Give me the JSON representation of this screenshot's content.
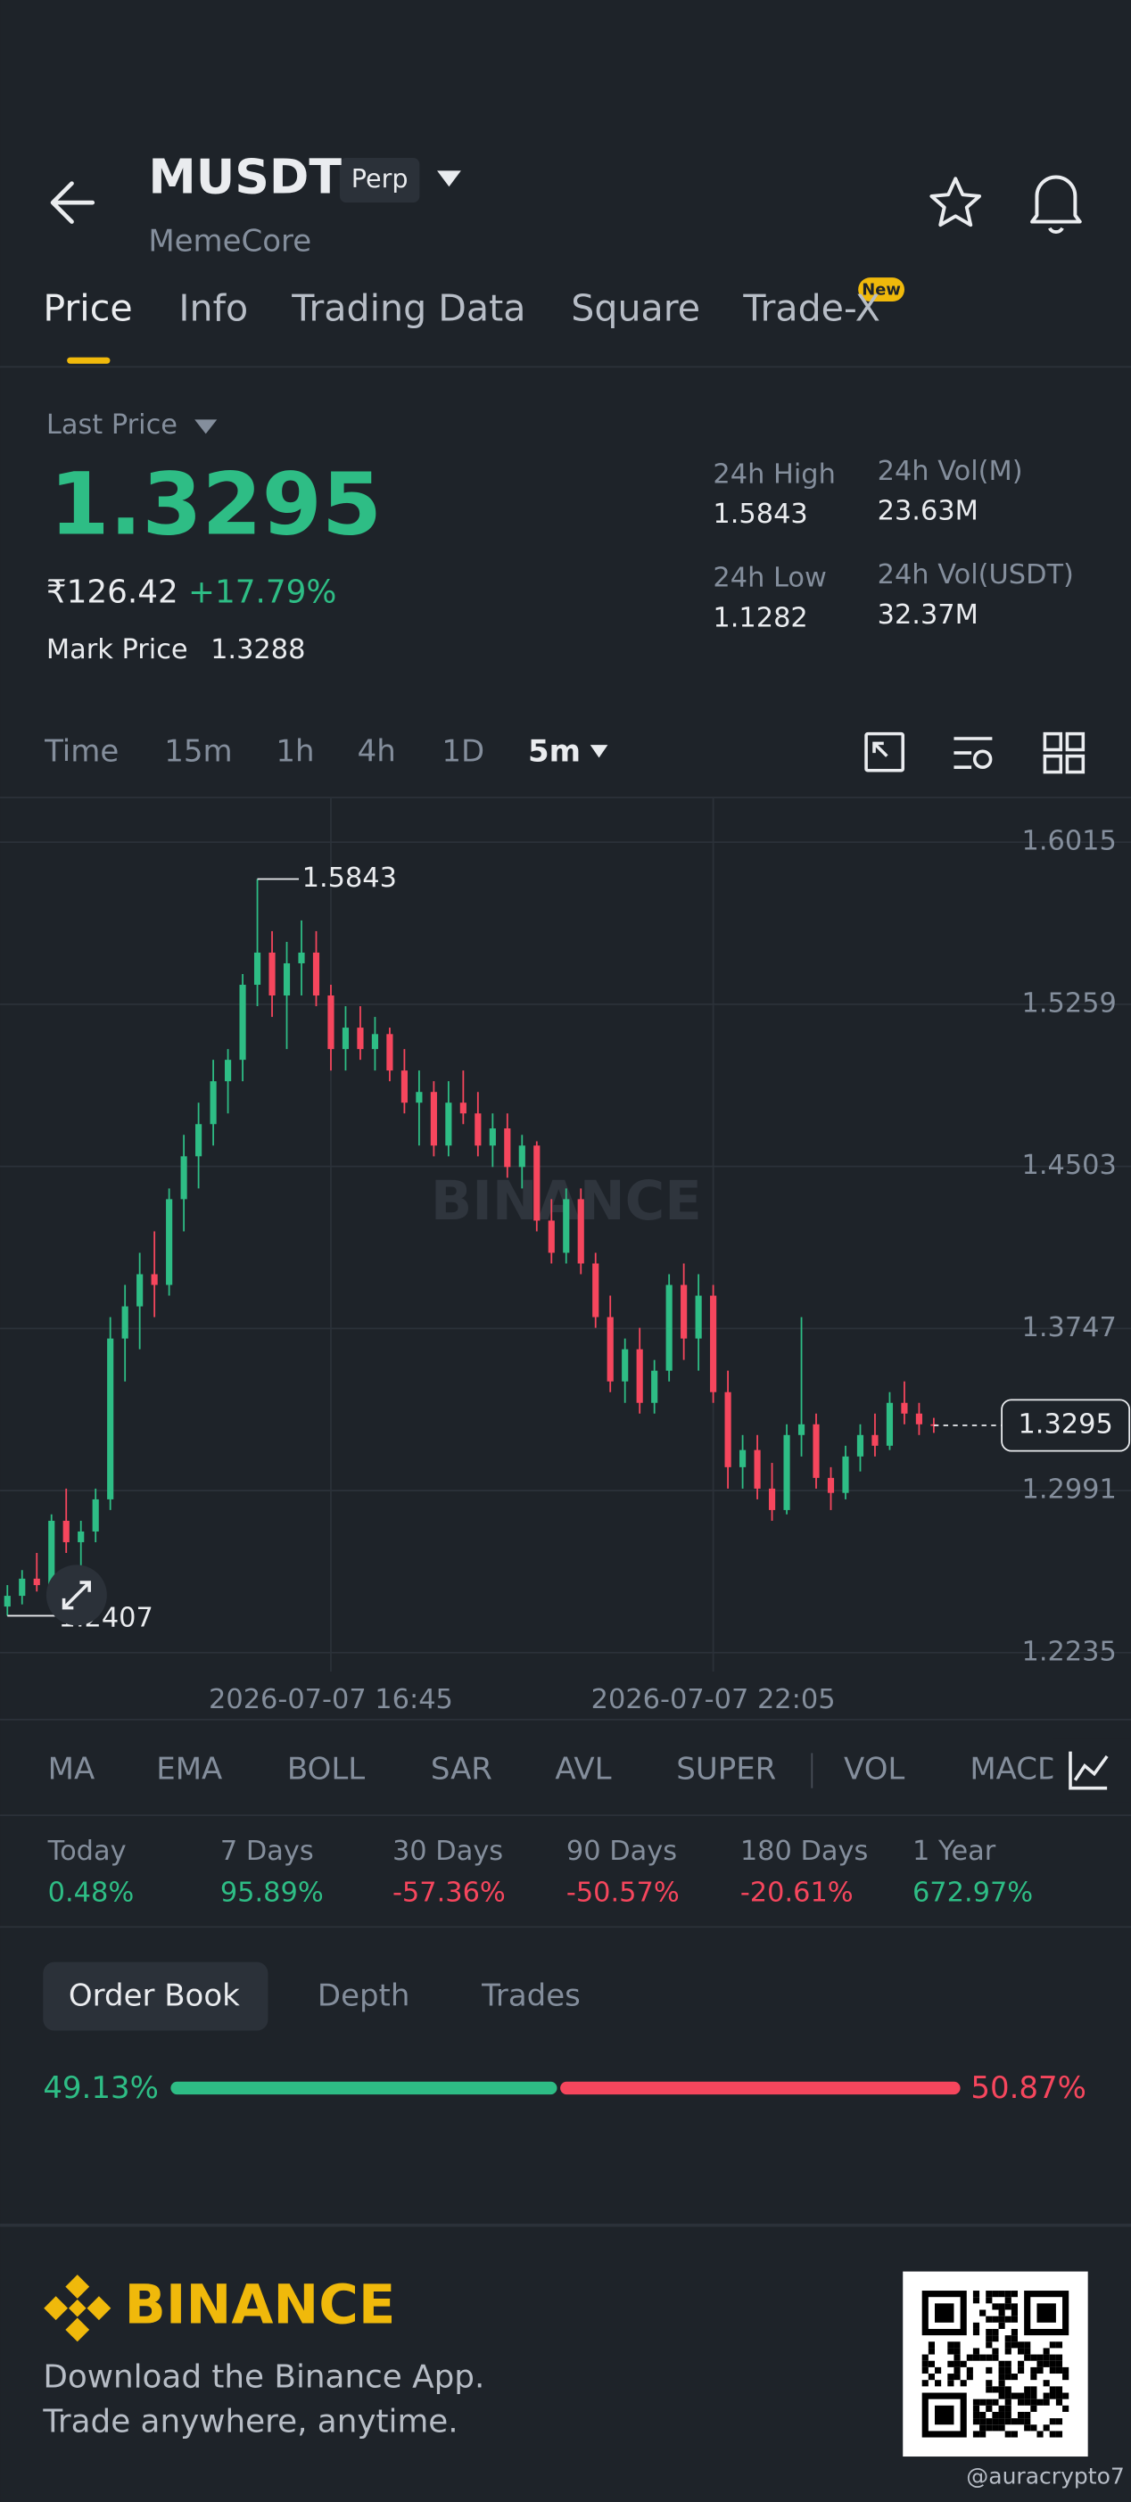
{
  "header": {
    "symbol": "MUSDT",
    "badge": "Perp",
    "name": "MemeCore"
  },
  "tabs": [
    "Price",
    "Info",
    "Trading Data",
    "Square",
    "Trade-X"
  ],
  "tab_badge": "New",
  "ticker": {
    "last_price_label": "Last Price",
    "last_price": "1.3295",
    "fiat_price": "₹126.42",
    "change": "+17.79%",
    "mark_price_label": "Mark Price",
    "mark_price": "1.3288",
    "stats": [
      {
        "label": "24h High",
        "value": "1.5843"
      },
      {
        "label": "24h Vol(M)",
        "value": "23.63M"
      },
      {
        "label": "24h Low",
        "value": "1.1282"
      },
      {
        "label": "24h Vol(USDT)",
        "value": "32.37M"
      }
    ]
  },
  "intervals": [
    "Time",
    "15m",
    "1h",
    "4h",
    "1D",
    "5m"
  ],
  "chart_data": {
    "type": "candlestick",
    "watermark": "BINANCE",
    "categories": [
      null,
      null,
      null,
      null,
      null,
      null,
      null,
      null,
      null,
      null,
      null,
      null,
      null,
      null,
      null,
      null,
      null,
      null,
      null,
      null,
      null,
      null,
      "2026-07-07 16:45",
      null,
      null,
      null,
      null,
      null,
      null,
      null,
      null,
      null,
      null,
      null,
      null,
      null,
      null,
      null,
      null,
      null,
      null,
      null,
      null,
      null,
      null,
      null,
      null,
      null,
      "2026-07-07 22:05",
      null,
      null,
      null,
      null,
      null,
      null,
      null,
      null,
      null,
      null,
      null,
      null,
      null,
      null,
      null
    ],
    "open": [
      1.245,
      1.25,
      1.258,
      1.255,
      1.285,
      1.275,
      1.28,
      1.295,
      1.37,
      1.385,
      1.4,
      1.395,
      1.435,
      1.455,
      1.47,
      1.49,
      1.5,
      1.535,
      1.55,
      1.53,
      1.545,
      1.55,
      1.53,
      1.505,
      1.515,
      1.505,
      1.512,
      1.495,
      1.48,
      1.485,
      1.46,
      1.48,
      1.475,
      1.46,
      1.468,
      1.45,
      1.46,
      1.425,
      1.41,
      1.435,
      1.405,
      1.38,
      1.35,
      1.365,
      1.34,
      1.355,
      1.395,
      1.37,
      1.39,
      1.345,
      1.31,
      1.318,
      1.3,
      1.29,
      1.325,
      1.33,
      1.305,
      1.298,
      1.315,
      1.325,
      1.32,
      1.34,
      1.335,
      1.33
    ],
    "high": [
      1.255,
      1.262,
      1.27,
      1.288,
      1.3,
      1.285,
      1.3,
      1.38,
      1.395,
      1.41,
      1.42,
      1.44,
      1.465,
      1.48,
      1.5,
      1.505,
      1.54,
      1.5843,
      1.56,
      1.555,
      1.565,
      1.56,
      1.535,
      1.525,
      1.525,
      1.52,
      1.515,
      1.505,
      1.495,
      1.49,
      1.49,
      1.495,
      1.485,
      1.475,
      1.475,
      1.465,
      1.462,
      1.435,
      1.44,
      1.44,
      1.41,
      1.39,
      1.37,
      1.375,
      1.36,
      1.4,
      1.405,
      1.4,
      1.395,
      1.355,
      1.325,
      1.325,
      1.312,
      1.33,
      1.38,
      1.335,
      1.31,
      1.32,
      1.33,
      1.335,
      1.345,
      1.35,
      1.34,
      1.333
    ],
    "low": [
      1.2407,
      1.246,
      1.252,
      1.253,
      1.27,
      1.262,
      1.275,
      1.29,
      1.35,
      1.365,
      1.38,
      1.39,
      1.42,
      1.44,
      1.46,
      1.475,
      1.49,
      1.525,
      1.52,
      1.505,
      1.53,
      1.525,
      1.495,
      1.495,
      1.5,
      1.495,
      1.49,
      1.475,
      1.46,
      1.455,
      1.455,
      1.47,
      1.455,
      1.45,
      1.445,
      1.44,
      1.42,
      1.405,
      1.405,
      1.4,
      1.375,
      1.345,
      1.34,
      1.335,
      1.335,
      1.35,
      1.36,
      1.355,
      1.34,
      1.3,
      1.3,
      1.295,
      1.285,
      1.288,
      1.315,
      1.3,
      1.29,
      1.295,
      1.308,
      1.315,
      1.318,
      1.33,
      1.325,
      1.326
    ],
    "close": [
      1.25,
      1.258,
      1.255,
      1.285,
      1.275,
      1.28,
      1.295,
      1.37,
      1.385,
      1.4,
      1.395,
      1.435,
      1.455,
      1.47,
      1.49,
      1.5,
      1.535,
      1.55,
      1.53,
      1.545,
      1.55,
      1.53,
      1.505,
      1.515,
      1.505,
      1.512,
      1.495,
      1.48,
      1.485,
      1.46,
      1.48,
      1.475,
      1.46,
      1.468,
      1.45,
      1.46,
      1.425,
      1.41,
      1.435,
      1.405,
      1.38,
      1.35,
      1.365,
      1.34,
      1.355,
      1.395,
      1.37,
      1.39,
      1.345,
      1.31,
      1.318,
      1.3,
      1.29,
      1.325,
      1.33,
      1.305,
      1.298,
      1.315,
      1.325,
      1.32,
      1.34,
      1.335,
      1.33,
      1.3295
    ],
    "ylim": [
      1.2146,
      1.6223
    ],
    "yticks": [
      1.6015,
      1.5259,
      1.4503,
      1.3747,
      1.2991,
      1.2235
    ],
    "grid": true,
    "up_color": "#2ebd85",
    "down_color": "#f6465d"
  },
  "indicators": [
    "MA",
    "EMA",
    "BOLL",
    "SAR",
    "AVL",
    "SUPER",
    "VOL",
    "MACD"
  ],
  "performance": [
    {
      "label": "Today",
      "value": "0.48%"
    },
    {
      "label": "7 Days",
      "value": "95.89%"
    },
    {
      "label": "30 Days",
      "value": "-57.36%"
    },
    {
      "label": "90 Days",
      "value": "-50.57%"
    },
    {
      "label": "180 Days",
      "value": "-20.61%"
    },
    {
      "label": "1 Year",
      "value": "672.97%"
    }
  ],
  "order_book": {
    "tabs": [
      "Order Book",
      "Depth",
      "Trades"
    ],
    "bid": {
      "value": 49.13,
      "label": "49.13%"
    },
    "ask": {
      "value": 50.87,
      "label": "50.87%"
    }
  },
  "footer": {
    "brand": "BINANCE",
    "lines": [
      "Download the Binance App.",
      "Trade anywhere, anytime."
    ],
    "handle": "@auracrypto7"
  }
}
